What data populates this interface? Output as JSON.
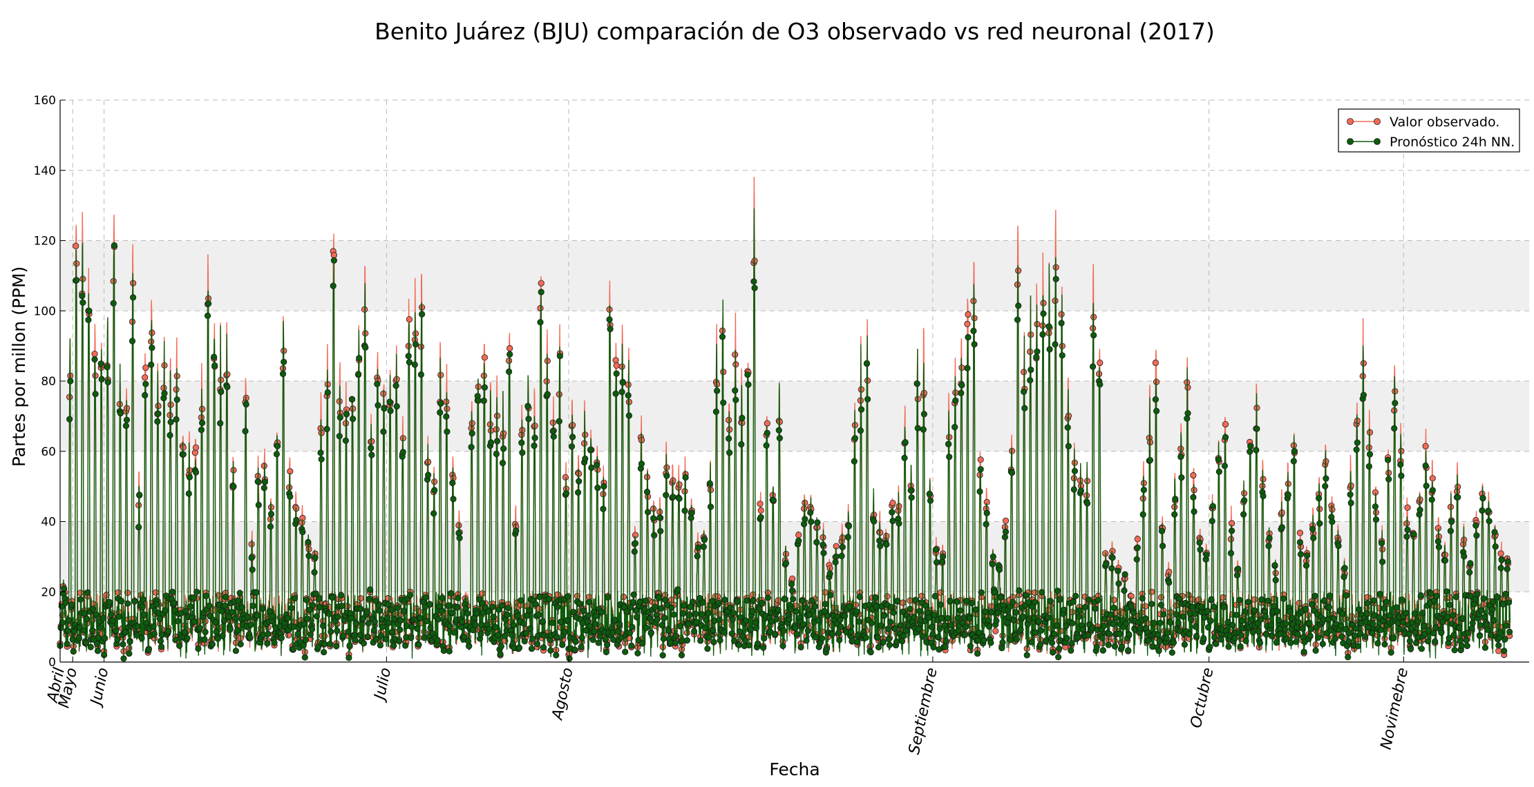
{
  "chart_data": {
    "type": "line",
    "title": "Benito Juárez (BJU) comparación de O3 observado vs red neuronal (2017)",
    "xlabel": "Fecha",
    "ylabel": "Partes por millon (PPM)",
    "ylim": [
      0,
      160
    ],
    "yticks": [
      0,
      20,
      40,
      60,
      80,
      100,
      120,
      140,
      160
    ],
    "x_unit": "day index from Abril 1 (2017)",
    "xlim": [
      0,
      234
    ],
    "month_ticks": [
      {
        "label": "Abril",
        "day": 0
      },
      {
        "label": "Mayo",
        "day": 2
      },
      {
        "label": "Junio",
        "day": 7
      },
      {
        "label": "Julio",
        "day": 52
      },
      {
        "label": "Agosto",
        "day": 81
      },
      {
        "label": "Septiembre",
        "day": 139
      },
      {
        "label": "Octubre",
        "day": 183
      },
      {
        "label": "Novimebre",
        "day": 214
      }
    ],
    "band_ranges": [
      [
        20,
        40
      ],
      [
        60,
        80
      ],
      [
        100,
        120
      ]
    ],
    "grid": true,
    "legend_position": "top-right",
    "daily_peak_observed": [
      23,
      96,
      135,
      131,
      115,
      107,
      98,
      103,
      143,
      88,
      85,
      124,
      55,
      96,
      114,
      90,
      96,
      88,
      99,
      72,
      68,
      69,
      87,
      120,
      108,
      98,
      100,
      62,
      18,
      86,
      38,
      61,
      66,
      50,
      72,
      106,
      60,
      52,
      48,
      38,
      33,
      80,
      96,
      133,
      88,
      82,
      86,
      99,
      120,
      73,
      94,
      89,
      94,
      99,
      73,
      111,
      112,
      115,
      67,
      57,
      93,
      89,
      60,
      45,
      20,
      80,
      90,
      103,
      83,
      86,
      80,
      106,
      47,
      76,
      90,
      80,
      122,
      97,
      78,
      99,
      59,
      84,
      63,
      77,
      71,
      64,
      57,
      114,
      99,
      98,
      93,
      40,
      73,
      60,
      50,
      48,
      67,
      62,
      57,
      60,
      50,
      38,
      40,
      60,
      100,
      107,
      80,
      103,
      87,
      95,
      145,
      50,
      79,
      55,
      86,
      35,
      25,
      40,
      52,
      51,
      45,
      40,
      30,
      36,
      40,
      46,
      79,
      95,
      103,
      50,
      45,
      40,
      50,
      52,
      78,
      60,
      93,
      98,
      55,
      36,
      35,
      78,
      90,
      104,
      113,
      123,
      66,
      52,
      33,
      29,
      44,
      71,
      134,
      96,
      108,
      113,
      120,
      121,
      132,
      114,
      84,
      67,
      60,
      58,
      119,
      101,
      34,
      35,
      30,
      25,
      20,
      40,
      60,
      80,
      100,
      45,
      30,
      55,
      70,
      90,
      60,
      40,
      35,
      50,
      65,
      80,
      45,
      30,
      55,
      70,
      85,
      60,
      40,
      30,
      50,
      60,
      70,
      40,
      35,
      45,
      55,
      65,
      50,
      40,
      30,
      60,
      80,
      100,
      75,
      55,
      40,
      65,
      90,
      70,
      50,
      40,
      55,
      70,
      60,
      45,
      35,
      50,
      60,
      40,
      30,
      45,
      55,
      50,
      40,
      35,
      32
    ],
    "series": [
      {
        "name": "Valor observado.",
        "color": "#f26b57",
        "stroke": "#f26b57",
        "marker": "circle"
      },
      {
        "name": "Pronóstico 24h NN.",
        "color": "#0c5c0c",
        "stroke": "#0c5c0c",
        "marker": "circle"
      }
    ]
  }
}
